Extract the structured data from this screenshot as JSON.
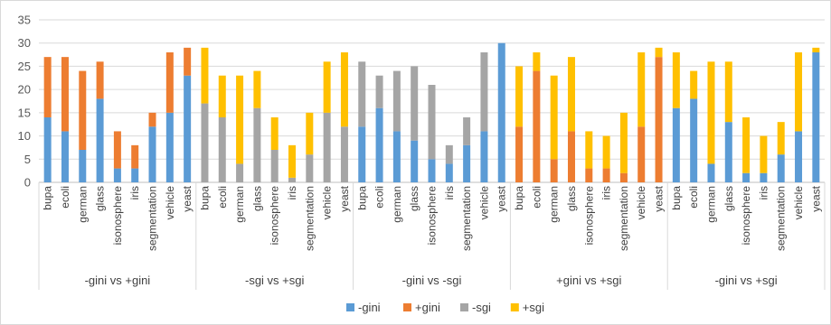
{
  "chart_data": {
    "type": "bar",
    "stacked": true,
    "title": "",
    "xlabel": "",
    "ylabel": "",
    "ylim": [
      0,
      35
    ],
    "yticks": [
      0,
      5,
      10,
      15,
      20,
      25,
      30,
      35
    ],
    "grid": true,
    "legend_position": "bottom",
    "categories": [
      "bupa",
      "ecoli",
      "german",
      "glass",
      "isonosphere",
      "iris",
      "segmentation",
      "vehicle",
      "yeast"
    ],
    "series": [
      {
        "name": "-gini",
        "color": "#5b9bd5"
      },
      {
        "name": "+gini",
        "color": "#ed7d31"
      },
      {
        "name": "-sgi",
        "color": "#a5a5a5"
      },
      {
        "name": "+sgi",
        "color": "#ffc000"
      }
    ],
    "groups": [
      {
        "label": "-gini vs +gini",
        "stacks": [
          {
            "series": "-gini",
            "values": [
              14,
              11,
              7,
              18,
              3,
              3,
              12,
              15,
              23
            ]
          },
          {
            "series": "+gini",
            "values": [
              13,
              16,
              17,
              8,
              8,
              5,
              3,
              13,
              6
            ]
          }
        ]
      },
      {
        "label": "-sgi vs +sgi",
        "stacks": [
          {
            "series": "-sgi",
            "values": [
              17,
              14,
              4,
              16,
              7,
              1,
              6,
              15,
              12
            ]
          },
          {
            "series": "+sgi",
            "values": [
              12,
              9,
              19,
              8,
              7,
              7,
              9,
              11,
              16
            ]
          }
        ]
      },
      {
        "label": "-gini vs -sgi",
        "stacks": [
          {
            "series": "-gini",
            "values": [
              12,
              16,
              11,
              9,
              5,
              4,
              8,
              11,
              30
            ]
          },
          {
            "series": "-sgi",
            "values": [
              14,
              7,
              13,
              16,
              16,
              4,
              6,
              17,
              0
            ]
          }
        ]
      },
      {
        "label": "+gini vs +sgi",
        "stacks": [
          {
            "series": "+gini",
            "values": [
              12,
              24,
              5,
              11,
              3,
              3,
              2,
              12,
              27
            ]
          },
          {
            "series": "+sgi",
            "values": [
              13,
              4,
              18,
              16,
              8,
              7,
              13,
              16,
              2
            ]
          }
        ]
      },
      {
        "label": "-gini vs +sgi",
        "stacks": [
          {
            "series": "-gini",
            "values": [
              16,
              18,
              4,
              13,
              2,
              2,
              6,
              11,
              28
            ]
          },
          {
            "series": "+sgi",
            "values": [
              12,
              6,
              22,
              13,
              12,
              8,
              7,
              17,
              1
            ]
          }
        ]
      }
    ]
  }
}
